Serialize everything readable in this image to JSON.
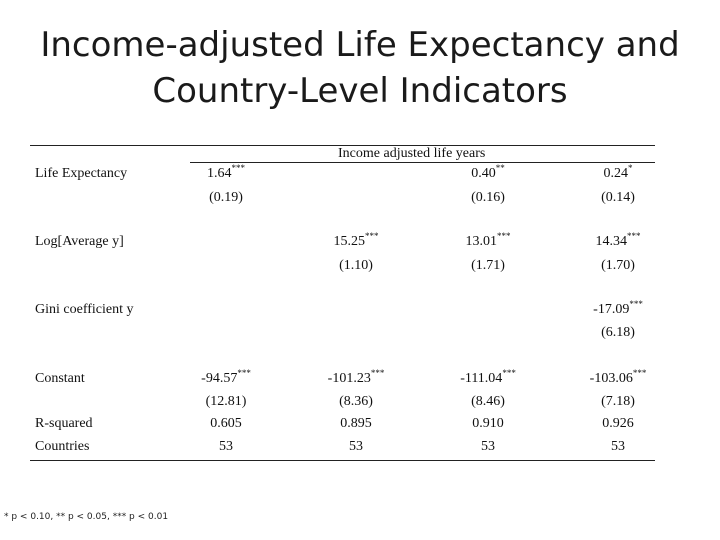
{
  "title": {
    "line1": "Income-adjusted Life Expectancy and",
    "line2": "Country-Level Indicators"
  },
  "table": {
    "header": "Income adjusted life years",
    "rows": {
      "life_expectancy": {
        "label": "Life Expectancy",
        "c1": {
          "v": "1.64",
          "s": "***"
        },
        "c1_se": "(0.19)",
        "c3": {
          "v": "0.40",
          "s": "**"
        },
        "c3_se": "(0.16)",
        "c4": {
          "v": "0.24",
          "s": "*"
        },
        "c4_se": "(0.14)"
      },
      "log_avg_y": {
        "label": "Log[Average y]",
        "c2": {
          "v": "15.25",
          "s": "***"
        },
        "c2_se": "(1.10)",
        "c3": {
          "v": "13.01",
          "s": "***"
        },
        "c3_se": "(1.71)",
        "c4": {
          "v": "14.34",
          "s": "***"
        },
        "c4_se": "(1.70)"
      },
      "gini": {
        "label": "Gini coefficient y",
        "c4": {
          "v": "-17.09",
          "s": "***"
        },
        "c4_se": "(6.18)"
      },
      "constant": {
        "label": "Constant",
        "c1": {
          "v": "-94.57",
          "s": "***"
        },
        "c1_se": "(12.81)",
        "c2": {
          "v": "-101.23",
          "s": "***"
        },
        "c2_se": "(8.36)",
        "c3": {
          "v": "-111.04",
          "s": "***"
        },
        "c3_se": "(8.46)",
        "c4": {
          "v": "-103.06",
          "s": "***"
        },
        "c4_se": "(7.18)"
      },
      "r_squared": {
        "label": "R-squared",
        "c1": "0.605",
        "c2": "0.895",
        "c3": "0.910",
        "c4": "0.926"
      },
      "countries": {
        "label": "Countries",
        "c1": "53",
        "c2": "53",
        "c3": "53",
        "c4": "53"
      }
    }
  },
  "footnote": "* p < 0.10, ** p < 0.05, *** p < 0.01"
}
